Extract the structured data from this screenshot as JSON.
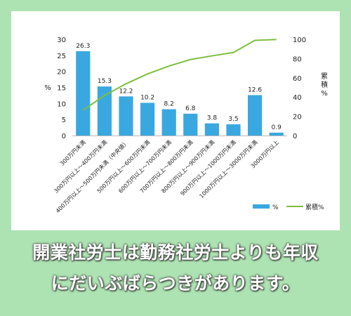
{
  "chart_data": {
    "type": "bar",
    "categories": [
      "300万円未満",
      "300万円以上～400万円未満",
      "400万円以上～500万円未満（中央値）",
      "500万円以上～600万円未満",
      "600万円以上～700万円未満",
      "700万円以上～800万円未満",
      "800万円以上～900万円未満",
      "900万円以上～1000万円未満",
      "1000万円以上～3000万円未満",
      "3000万円以上"
    ],
    "series": [
      {
        "name": "%",
        "type": "bar",
        "axis": "left",
        "color": "#3aa8e0",
        "values": [
          26.3,
          15.3,
          12.2,
          10.2,
          8.2,
          6.8,
          3.8,
          3.5,
          12.6,
          0.9
        ]
      },
      {
        "name": "累積%",
        "type": "line",
        "axis": "right",
        "color": "#7cbf3f",
        "values": [
          26.3,
          41.6,
          53.8,
          64.0,
          72.2,
          79.0,
          82.8,
          86.3,
          98.9,
          99.8
        ]
      }
    ],
    "ylabel_left": "%",
    "ylabel_right": "累積%",
    "ylim_left": [
      0,
      30
    ],
    "yticks_left": [
      0,
      5,
      10,
      15,
      20,
      25,
      30
    ],
    "ylim_right": [
      0,
      100
    ],
    "yticks_right": [
      0,
      20,
      40,
      60,
      80,
      100
    ],
    "grid": false,
    "legend_position": "bottom-right"
  },
  "caption": {
    "line1": "開業社労士は勤務社労士よりも年収",
    "line2": "にだいぶばらつきがあります。"
  }
}
